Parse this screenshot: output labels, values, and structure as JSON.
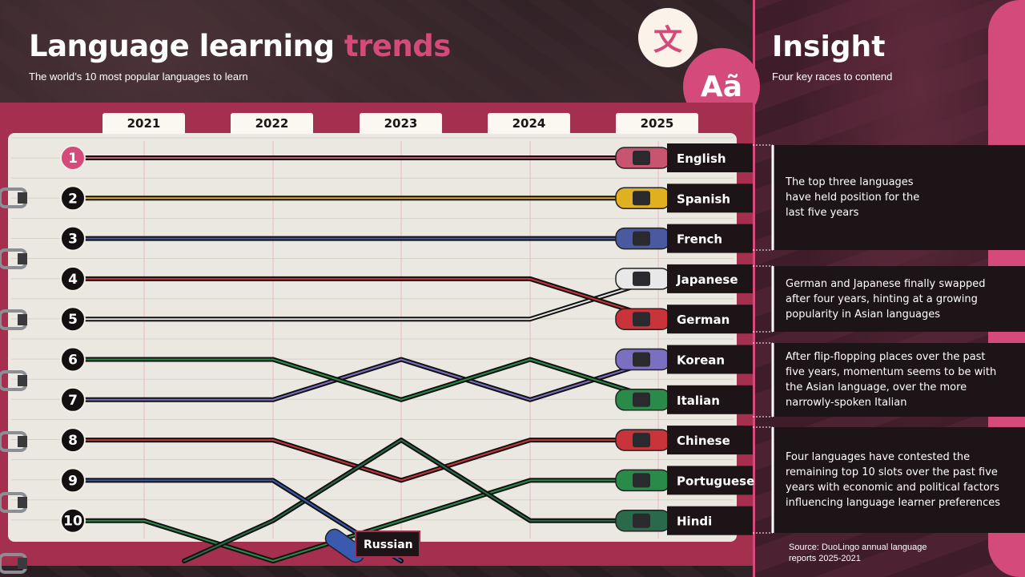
{
  "header": {
    "title_main": "Language learning",
    "title_accent": "trends",
    "subtitle": "The world’s 10 most popular languages to learn"
  },
  "insight_panel": {
    "title": "Insight",
    "subtitle": "Four key races to contend",
    "boxes": [
      {
        "lines": [
          "The top three languages",
          "have held position for the",
          "last five years"
        ]
      },
      {
        "lines": [
          "German and Japanese finally swapped",
          "after four years, hinting at a growing",
          "popularity in Asian languages"
        ]
      },
      {
        "lines": [
          "After flip-flopping places over the past",
          "five years, momentum seems to be with",
          "the Asian language, over the more",
          "narrowly-spoken Italian"
        ]
      },
      {
        "lines": [
          "Four languages have contested the",
          "remaining top 10 slots over the past five",
          "years with economic and political factors",
          "influencing language learner preferences"
        ]
      }
    ],
    "source": "Source: DuoLingo annual language reports 2025-2021"
  },
  "icons": {
    "translate_glyph": "文",
    "accent_glyph": "Aã",
    "translate_icon": "speech-bubble-translate-icon",
    "accent_icon": "accent-letters-icon"
  },
  "colors": {
    "accent_pink": "#d44a7a",
    "maroon": "#a52f4f",
    "paper": "#ebe8e1",
    "dark": "#1c1417"
  },
  "chart_data": {
    "type": "line",
    "chart_kind": "bump",
    "years": [
      "2021",
      "2022",
      "2023",
      "2024",
      "2025"
    ],
    "ranks": [
      "1",
      "2",
      "3",
      "4",
      "5",
      "6",
      "7",
      "8",
      "9",
      "10"
    ],
    "y_reversed": true,
    "grid": true,
    "series": [
      {
        "name": "English",
        "ranks": [
          1,
          1,
          1,
          1,
          1
        ],
        "color": "#c8556f"
      },
      {
        "name": "Spanish",
        "ranks": [
          2,
          2,
          2,
          2,
          2
        ],
        "color": "#e0b020"
      },
      {
        "name": "French",
        "ranks": [
          3,
          3,
          3,
          3,
          3
        ],
        "color": "#4a5aa0"
      },
      {
        "name": "Japanese",
        "ranks": [
          5,
          5,
          5,
          5,
          4
        ],
        "color": "#e8e8e8"
      },
      {
        "name": "German",
        "ranks": [
          4,
          4,
          4,
          4,
          5
        ],
        "color": "#c8343a"
      },
      {
        "name": "Korean",
        "ranks": [
          7,
          7,
          6,
          7,
          6
        ],
        "color": "#7a6fc0"
      },
      {
        "name": "Italian",
        "ranks": [
          6,
          6,
          7,
          6,
          7
        ],
        "color": "#2a8a4a"
      },
      {
        "name": "Chinese",
        "ranks": [
          8,
          8,
          9,
          8,
          8
        ],
        "color": "#c8343a"
      },
      {
        "name": "Portuguese",
        "ranks": [
          10,
          11,
          10,
          9,
          9
        ],
        "color": "#2a8a4a"
      },
      {
        "name": "Hindi",
        "ranks": [
          11,
          10,
          8,
          10,
          10
        ],
        "color": "#2a6a4a"
      },
      {
        "name": "Russian",
        "ranks": [
          9,
          9,
          11,
          null,
          null
        ],
        "color": "#3a5ab0"
      }
    ],
    "end_labels": [
      "English",
      "Spanish",
      "French",
      "Japanese",
      "German",
      "Korean",
      "Italian",
      "Chinese",
      "Portuguese",
      "Hindi"
    ],
    "dropped_label": "Russian"
  }
}
